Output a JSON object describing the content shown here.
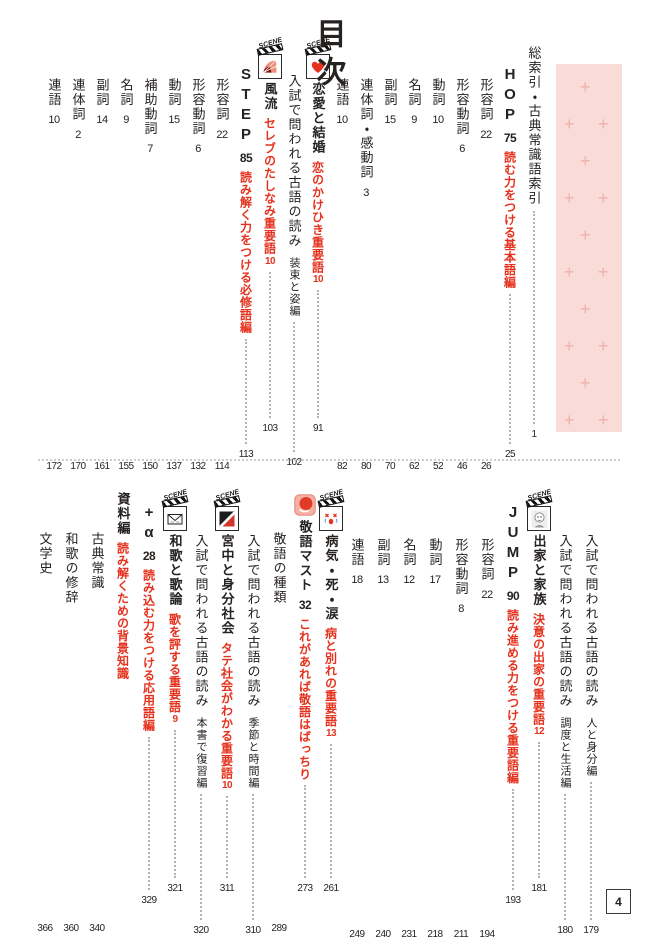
{
  "ui": {
    "toc_title": "目次",
    "scene_label": "SCENE",
    "folio": "4",
    "band_pattern_glyph": "+"
  },
  "colors": {
    "red": "#e5321e",
    "pink_band": "#f9dbd8",
    "pink_cross": "#f0b2aa",
    "text": "#262220"
  },
  "sections": [
    {
      "id": "top",
      "entries": [
        {
          "type": "index",
          "title": "総索引・古典常識語索引",
          "page": "1",
          "leader": true
        },
        {
          "type": "level",
          "latin": "HOP",
          "num": "75",
          "subtitle": "読む力をつける基本語編",
          "page": "25",
          "leader": true
        },
        {
          "type": "word",
          "title": "形容詞",
          "count": "22",
          "page": "26",
          "leader": false
        },
        {
          "type": "word",
          "title": "形容動詞",
          "count": "6",
          "page": "46",
          "leader": false
        },
        {
          "type": "word",
          "title": "動詞",
          "count": "10",
          "page": "52",
          "leader": false
        },
        {
          "type": "word",
          "title": "名詞",
          "count": "9",
          "page": "62",
          "leader": false
        },
        {
          "type": "word",
          "title": "副詞",
          "count": "15",
          "page": "70",
          "leader": false
        },
        {
          "type": "word",
          "title": "連体詞・感動詞",
          "count": "3",
          "page": "80",
          "leader": false
        },
        {
          "type": "word",
          "title": "連語",
          "count": "10",
          "page": "82",
          "leader": false
        },
        {
          "type": "scene",
          "icon": "heart",
          "title": "恋愛と結婚",
          "subtitle": "恋のかけひき重要語",
          "subnum": "10",
          "page": "91",
          "leader": true
        },
        {
          "type": "reading",
          "title": "入試で問われる古語の読み",
          "note": "装束と姿編",
          "page": "102",
          "leader": true
        },
        {
          "type": "scene",
          "icon": "fan",
          "title": "風流",
          "subtitle": "セレブのたしなみ重要語",
          "subnum": "10",
          "page": "103",
          "leader": true
        },
        {
          "type": "level",
          "latin": "STEP",
          "num": "85",
          "subtitle": "読み解く力をつける必修語編",
          "page": "113",
          "leader": true
        },
        {
          "type": "word",
          "title": "形容詞",
          "count": "22",
          "page": "114",
          "leader": false
        },
        {
          "type": "word",
          "title": "形容動詞",
          "count": "6",
          "page": "132",
          "leader": false
        },
        {
          "type": "word",
          "title": "動詞",
          "count": "15",
          "page": "137",
          "leader": false
        },
        {
          "type": "word",
          "title": "補助動詞",
          "count": "7",
          "page": "150",
          "leader": false
        },
        {
          "type": "word",
          "title": "名詞",
          "count": "9",
          "page": "155",
          "leader": false
        },
        {
          "type": "word",
          "title": "副詞",
          "count": "14",
          "page": "161",
          "leader": false
        },
        {
          "type": "word",
          "title": "連体詞",
          "count": "2",
          "page": "170",
          "leader": false
        },
        {
          "type": "word",
          "title": "連語",
          "count": "10",
          "page": "172",
          "leader": false
        }
      ]
    },
    {
      "id": "bottom",
      "entries": [
        {
          "type": "reading",
          "title": "入試で問われる古語の読み",
          "note": "人と身分編",
          "page": "179",
          "leader": true
        },
        {
          "type": "reading",
          "title": "入試で問われる古語の読み",
          "note": "調度と生活編",
          "page": "180",
          "leader": true
        },
        {
          "type": "scene",
          "icon": "monk",
          "title": "出家と家族",
          "subtitle": "決意の出家の重要語",
          "subnum": "12",
          "page": "181",
          "leader": true
        },
        {
          "type": "level",
          "latin": "JUMP",
          "num": "90",
          "subtitle": "読み進める力をつける重要語編",
          "page": "193",
          "leader": true
        },
        {
          "type": "word",
          "title": "形容詞",
          "count": "22",
          "page": "194",
          "leader": false
        },
        {
          "type": "word",
          "title": "形容動詞",
          "count": "8",
          "page": "211",
          "leader": false
        },
        {
          "type": "word",
          "title": "動詞",
          "count": "17",
          "page": "218",
          "leader": false
        },
        {
          "type": "word",
          "title": "名詞",
          "count": "12",
          "page": "231",
          "leader": false
        },
        {
          "type": "word",
          "title": "副詞",
          "count": "13",
          "page": "240",
          "leader": false
        },
        {
          "type": "word",
          "title": "連語",
          "count": "18",
          "page": "249",
          "leader": false
        },
        {
          "type": "scene",
          "icon": "cry",
          "title": "病気・死・涙",
          "subtitle": "病と別れの重要語",
          "subnum": "13",
          "page": "261",
          "leader": true
        },
        {
          "type": "master",
          "icon": "seal",
          "title": "敬語マスト",
          "num": "32",
          "subtitle": "これがあれば敬語はばっちり",
          "page": "273",
          "leader": true
        },
        {
          "type": "plain",
          "title": "敬語の種類",
          "page": "289",
          "leader": false
        },
        {
          "type": "reading",
          "title": "入試で問われる古語の読み",
          "note": "季節と時間編",
          "page": "310",
          "leader": true
        },
        {
          "type": "scene",
          "icon": "palace",
          "title": "宮中と身分社会",
          "subtitle": "タテ社会がわかる重要語",
          "subnum": "10",
          "page": "311",
          "leader": true
        },
        {
          "type": "reading",
          "title": "入試で問われる古語の読み",
          "note": "本書で復習編",
          "page": "320",
          "leader": true
        },
        {
          "type": "scene",
          "icon": "letter",
          "title": "和歌と歌論",
          "subtitle": "歌を評する重要語",
          "subnum": "9",
          "page": "321",
          "leader": true
        },
        {
          "type": "level",
          "latin": "+α",
          "num": "28",
          "subtitle": "読み込む力をつける応用語編",
          "page": "329",
          "leader": true
        },
        {
          "type": "section2",
          "title": "資料編",
          "subtitle": "読み解くための背景知識",
          "leader": false
        },
        {
          "type": "plain",
          "title": "古典常識",
          "page": "340",
          "leader": false
        },
        {
          "type": "plain",
          "title": "和歌の修辞",
          "page": "360",
          "leader": false
        },
        {
          "type": "plain",
          "title": "文学史",
          "page": "366",
          "leader": false
        }
      ]
    }
  ]
}
